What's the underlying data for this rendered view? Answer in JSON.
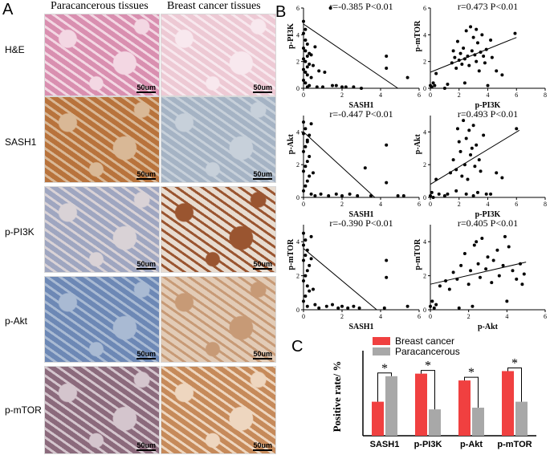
{
  "panels": {
    "A": "A",
    "B": "B",
    "C": "C"
  },
  "columns": [
    "Paracancerous tissues",
    "Breast cancer tissues"
  ],
  "rows": [
    "H&E",
    "SASH1",
    "p-PI3K",
    "p-Akt",
    "p-mTOR"
  ],
  "scale_bar": "50um",
  "tissue_colors": {
    "he_para": "#d98fb0",
    "he_cancer": "#edc9d4",
    "ihc_brown": "#b8733c",
    "ihc_blue": "#8fa3c2",
    "ihc_light": "#e8dcd0"
  },
  "chart_data": [
    {
      "type": "scatter",
      "xlabel": "SASH1",
      "ylabel": "p-PI3K",
      "annotation": "r=-0.385  P<0.01",
      "xticks": [
        "0",
        "2",
        "4",
        "6"
      ],
      "yticks": [
        "0",
        "2",
        "4",
        "6"
      ],
      "xlim": [
        0,
        6
      ],
      "ylim": [
        0,
        6
      ],
      "trend": [
        [
          0,
          4.8
        ],
        [
          4.9,
          0
        ]
      ],
      "points": [
        [
          0,
          5
        ],
        [
          0.1,
          4.4
        ],
        [
          0,
          4.1
        ],
        [
          0.1,
          3.6
        ],
        [
          0.2,
          3.3
        ],
        [
          0,
          3
        ],
        [
          0.1,
          2.8
        ],
        [
          0.3,
          2.6
        ],
        [
          0.2,
          2.4
        ],
        [
          0,
          2.2
        ],
        [
          0.1,
          2
        ],
        [
          0.3,
          1.8
        ],
        [
          0.2,
          1.6
        ],
        [
          0,
          1.4
        ],
        [
          0.1,
          1.2
        ],
        [
          0.2,
          1
        ],
        [
          0.4,
          0.8
        ],
        [
          0,
          0.6
        ],
        [
          0.1,
          0.4
        ],
        [
          0.3,
          0.2
        ],
        [
          0.2,
          0.1
        ],
        [
          0.5,
          1.7
        ],
        [
          0.4,
          2.5
        ],
        [
          0.6,
          3.1
        ],
        [
          0.8,
          1.3
        ],
        [
          1.1,
          1.2
        ],
        [
          1.4,
          6
        ],
        [
          1.5,
          0.2
        ],
        [
          1.7,
          0.2
        ],
        [
          2,
          0.1
        ],
        [
          2.2,
          0.1
        ],
        [
          2.6,
          0.1
        ],
        [
          3,
          0
        ],
        [
          4.3,
          2.4
        ],
        [
          4.3,
          1.5
        ],
        [
          5.4,
          0.8
        ],
        [
          1,
          0.1
        ],
        [
          0.7,
          0.1
        ]
      ]
    },
    {
      "type": "scatter",
      "xlabel": "p-PI3K",
      "ylabel": "p-mTOR",
      "annotation": "r=0.473  P<0.01",
      "xticks": [
        "0",
        "2",
        "4",
        "6",
        "8"
      ],
      "yticks": [
        "0",
        "2",
        "4",
        "6"
      ],
      "xlim": [
        0,
        8
      ],
      "ylim": [
        0,
        6
      ],
      "trend": [
        [
          0,
          1.2
        ],
        [
          6,
          3.8
        ]
      ],
      "points": [
        [
          0,
          0.2
        ],
        [
          0.1,
          0.1
        ],
        [
          0.2,
          0.4
        ],
        [
          0.3,
          0.2
        ],
        [
          0.4,
          1.1
        ],
        [
          1,
          0
        ],
        [
          1.2,
          0.3
        ],
        [
          1.5,
          1.9
        ],
        [
          1.7,
          2.3
        ],
        [
          1.8,
          1.5
        ],
        [
          1.9,
          3.5
        ],
        [
          2,
          2.1
        ],
        [
          2.1,
          2.6
        ],
        [
          2.2,
          1.8
        ],
        [
          2.3,
          3
        ],
        [
          2.4,
          2.2
        ],
        [
          2.5,
          4.3
        ],
        [
          2.6,
          2.4
        ],
        [
          2.7,
          1.7
        ],
        [
          2.8,
          4.6
        ],
        [
          2.9,
          2.8
        ],
        [
          3,
          3.8
        ],
        [
          3.1,
          2.5
        ],
        [
          3.2,
          2
        ],
        [
          3.3,
          3.4
        ],
        [
          3.4,
          1.3
        ],
        [
          3.5,
          2.7
        ],
        [
          3.6,
          4
        ],
        [
          3.7,
          2.4
        ],
        [
          3.8,
          1.9
        ],
        [
          3.9,
          2.9
        ],
        [
          4,
          0.2
        ],
        [
          4.2,
          3.6
        ],
        [
          4.3,
          2.3
        ],
        [
          4.6,
          1.3
        ],
        [
          5,
          1
        ],
        [
          5.9,
          4.1
        ],
        [
          2.4,
          0.4
        ],
        [
          1.6,
          2.8
        ],
        [
          3.2,
          4.4
        ]
      ]
    },
    {
      "type": "scatter",
      "xlabel": "SASH1",
      "ylabel": "p-Akt",
      "annotation": "r=-0.447  P<0.01",
      "xticks": [
        "0",
        "2",
        "4",
        "6"
      ],
      "yticks": [
        "0",
        "2",
        "4"
      ],
      "xlim": [
        0,
        6
      ],
      "ylim": [
        0,
        5
      ],
      "trend": [
        [
          0,
          4
        ],
        [
          3.7,
          0
        ]
      ],
      "points": [
        [
          0,
          4.6
        ],
        [
          0.1,
          4.2
        ],
        [
          0,
          3.9
        ],
        [
          0.2,
          3.5
        ],
        [
          0.1,
          3.1
        ],
        [
          0,
          2.8
        ],
        [
          0.3,
          2.5
        ],
        [
          0.2,
          2.2
        ],
        [
          0.1,
          1.9
        ],
        [
          0,
          1.6
        ],
        [
          0.3,
          1.3
        ],
        [
          0.2,
          1
        ],
        [
          0.1,
          0.7
        ],
        [
          0,
          0.4
        ],
        [
          0.4,
          0.2
        ],
        [
          0.3,
          3.8
        ],
        [
          0.5,
          1.5
        ],
        [
          0.6,
          0.1
        ],
        [
          0.9,
          0.2
        ],
        [
          1.3,
          0.1
        ],
        [
          1.7,
          0.2
        ],
        [
          2,
          0.1
        ],
        [
          2.4,
          0.2
        ],
        [
          2.8,
          0.1
        ],
        [
          3.2,
          1.8
        ],
        [
          3.5,
          0.1
        ],
        [
          4.3,
          3.2
        ],
        [
          4.3,
          0.9
        ],
        [
          4.9,
          0.1
        ],
        [
          5.2,
          0.1
        ],
        [
          0.2,
          3.4
        ],
        [
          0.4,
          4.5
        ]
      ]
    },
    {
      "type": "scatter",
      "xlabel": "p-PI3K",
      "ylabel": "p-Akt",
      "annotation": "r=0.493  P<0.01",
      "xticks": [
        "0",
        "2",
        "4",
        "6",
        "8"
      ],
      "yticks": [
        "0",
        "2",
        "4"
      ],
      "xlim": [
        0,
        8
      ],
      "ylim": [
        0,
        5
      ],
      "trend": [
        [
          0,
          0.8
        ],
        [
          6.2,
          4.1
        ]
      ],
      "points": [
        [
          0,
          0.1
        ],
        [
          0.1,
          0.3
        ],
        [
          0.2,
          0
        ],
        [
          0.4,
          1.1
        ],
        [
          0.6,
          0.2
        ],
        [
          1,
          0.1
        ],
        [
          1.2,
          0.2
        ],
        [
          1.4,
          1.5
        ],
        [
          1.6,
          2.3
        ],
        [
          1.8,
          1.7
        ],
        [
          1.9,
          4.2
        ],
        [
          2,
          3.4
        ],
        [
          2.1,
          2.8
        ],
        [
          2.2,
          1.3
        ],
        [
          2.3,
          4.7
        ],
        [
          2.4,
          2
        ],
        [
          2.5,
          3.6
        ],
        [
          2.6,
          1.1
        ],
        [
          2.7,
          4.1
        ],
        [
          2.8,
          2.6
        ],
        [
          2.9,
          3
        ],
        [
          3,
          4.4
        ],
        [
          3.1,
          1.9
        ],
        [
          3.2,
          3.2
        ],
        [
          3.3,
          0.3
        ],
        [
          3.4,
          2.3
        ],
        [
          3.5,
          1.6
        ],
        [
          3.7,
          3.8
        ],
        [
          3.9,
          0.2
        ],
        [
          4.2,
          0.2
        ],
        [
          4.6,
          1.5
        ],
        [
          5,
          1.2
        ],
        [
          6,
          4.2
        ],
        [
          2.5,
          0.2
        ],
        [
          1.8,
          0.4
        ],
        [
          3,
          0.1
        ]
      ]
    },
    {
      "type": "scatter",
      "xlabel": "SASH1",
      "ylabel": "p-mTOR",
      "annotation": "r=-0.390  P<0.01",
      "xticks": [
        "0",
        "2",
        "4",
        "6"
      ],
      "yticks": [
        "0",
        "2",
        "4"
      ],
      "xlim": [
        0,
        6
      ],
      "ylim": [
        0,
        5
      ],
      "trend": [
        [
          0,
          3.6
        ],
        [
          3.8,
          0
        ]
      ],
      "points": [
        [
          0,
          4.5
        ],
        [
          0.1,
          4.1
        ],
        [
          0,
          3.8
        ],
        [
          0.2,
          3.5
        ],
        [
          0.1,
          3.2
        ],
        [
          0,
          2.9
        ],
        [
          0.3,
          2.6
        ],
        [
          0.2,
          2.3
        ],
        [
          0.1,
          2
        ],
        [
          0,
          1.7
        ],
        [
          0.2,
          1.4
        ],
        [
          0.3,
          1.1
        ],
        [
          0.1,
          0.8
        ],
        [
          0,
          0.5
        ],
        [
          0.2,
          0.2
        ],
        [
          0.4,
          3
        ],
        [
          0.5,
          1.2
        ],
        [
          0.6,
          0.3
        ],
        [
          0.8,
          0.1
        ],
        [
          1.2,
          0.2
        ],
        [
          1.5,
          0.3
        ],
        [
          1.8,
          0.1
        ],
        [
          2,
          0.2
        ],
        [
          2.3,
          0.1
        ],
        [
          2.6,
          0.2
        ],
        [
          2.9,
          0.1
        ],
        [
          4.3,
          2.9
        ],
        [
          4.3,
          1.9
        ],
        [
          4.2,
          0.1
        ],
        [
          5.4,
          0.2
        ],
        [
          0.4,
          4.3
        ]
      ]
    },
    {
      "type": "scatter",
      "xlabel": "p-Akt",
      "ylabel": "p-mTOR",
      "annotation": "r=0.405  P<0.01",
      "xticks": [
        "0",
        "2",
        "4",
        "6"
      ],
      "yticks": [
        "0",
        "2",
        "4"
      ],
      "xlim": [
        0,
        6
      ],
      "ylim": [
        0,
        5
      ],
      "trend": [
        [
          0,
          1.5
        ],
        [
          5,
          2.8
        ]
      ],
      "points": [
        [
          0,
          0.2
        ],
        [
          0.1,
          0.5
        ],
        [
          0.2,
          0.1
        ],
        [
          0.3,
          0.3
        ],
        [
          0.5,
          1.4
        ],
        [
          0.8,
          1.7
        ],
        [
          1,
          1.2
        ],
        [
          1.2,
          2.2
        ],
        [
          1.4,
          1.8
        ],
        [
          1.5,
          0.1
        ],
        [
          1.6,
          2.6
        ],
        [
          1.8,
          3.3
        ],
        [
          2,
          1.5
        ],
        [
          2.1,
          2.3
        ],
        [
          2.2,
          0.2
        ],
        [
          2.3,
          3.8
        ],
        [
          2.5,
          2.7
        ],
        [
          2.6,
          1.9
        ],
        [
          2.7,
          4.2
        ],
        [
          2.9,
          2.4
        ],
        [
          3,
          3.1
        ],
        [
          3.2,
          1.6
        ],
        [
          3.3,
          2.9
        ],
        [
          3.5,
          3.5
        ],
        [
          3.6,
          2
        ],
        [
          3.8,
          2.6
        ],
        [
          4,
          0.5
        ],
        [
          4.1,
          3.7
        ],
        [
          4.3,
          2.3
        ],
        [
          4.5,
          1.8
        ],
        [
          4.7,
          2.7
        ],
        [
          4.9,
          2.1
        ],
        [
          4.8,
          1.5
        ],
        [
          3.9,
          4.3
        ],
        [
          2.4,
          4
        ]
      ]
    },
    {
      "type": "bar",
      "ylabel": "Positive rate/ %",
      "categories": [
        "SASH1",
        "p-PI3K",
        "p-Akt",
        "p-mTOR"
      ],
      "series": [
        {
          "name": "Breast cancer",
          "color": "#f04040",
          "values": [
            40,
            73,
            65,
            76
          ]
        },
        {
          "name": "Paracancerous",
          "color": "#a8a8a8",
          "values": [
            70,
            31,
            33,
            40
          ]
        }
      ],
      "ylim": [
        0,
        100
      ],
      "significance": [
        "*",
        "*",
        "*",
        "*"
      ]
    }
  ]
}
